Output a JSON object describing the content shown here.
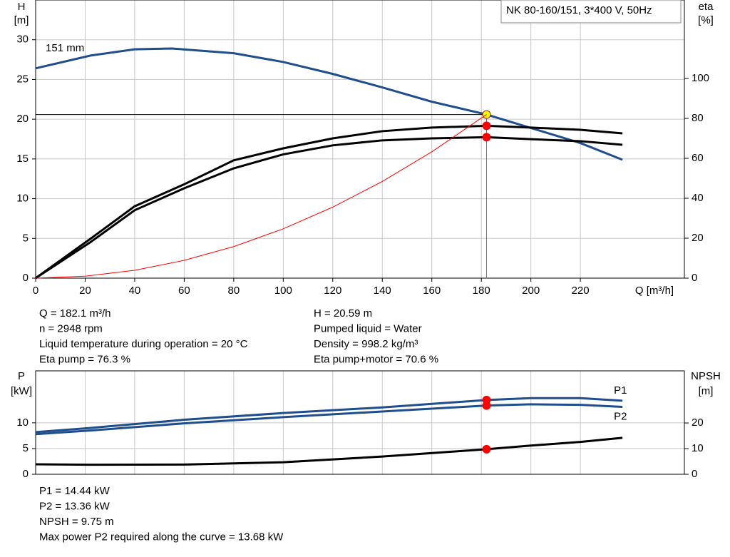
{
  "chart_data": [
    {
      "type": "line",
      "title": "NK 80-160/151, 3*400 V, 50Hz",
      "xlabel": "Q [m³/h]",
      "ylabel": "H",
      "yunit": "[m]",
      "y2label": "eta",
      "y2unit": "[%]",
      "xlim": [
        0,
        262
      ],
      "xticks": [
        0,
        20,
        40,
        60,
        80,
        100,
        120,
        140,
        160,
        180,
        200,
        220
      ],
      "ylim": [
        0,
        35
      ],
      "yticks": [
        0,
        5,
        10,
        15,
        20,
        25,
        30
      ],
      "y2lim": [
        0,
        139.3
      ],
      "y2ticks": [
        0,
        20,
        40,
        60,
        80,
        100
      ],
      "grid": true,
      "operating_q": 182.1,
      "drop_lines": true,
      "series": [
        {
          "name": "151 mm",
          "color": "#1f4e8c",
          "marker_color": "#ffff00",
          "x": [
            0,
            22,
            40,
            55,
            80,
            100,
            120,
            140,
            160,
            182.1,
            200,
            220,
            237
          ],
          "values": [
            26.4,
            28,
            28.8,
            28.9,
            28.3,
            27.2,
            25.7,
            24,
            22.2,
            20.59,
            18.9,
            17,
            14.9
          ]
        },
        {
          "color": "#000000",
          "marker_color": "#ff0000",
          "axis": "y2",
          "x": [
            0,
            22,
            40,
            60,
            80,
            100,
            120,
            140,
            160,
            182.1,
            200,
            220,
            237
          ],
          "values": [
            0,
            19.6,
            36,
            47,
            59,
            65,
            70,
            73.6,
            75.4,
            76.3,
            75.4,
            74.3,
            72.5
          ]
        },
        {
          "color": "#000000",
          "marker_color": "#ff0000",
          "axis": "y2",
          "x": [
            0,
            22,
            40,
            60,
            80,
            100,
            120,
            140,
            160,
            182.1,
            200,
            220,
            237
          ],
          "values": [
            0,
            17.9,
            34,
            45,
            55,
            62,
            66.5,
            69,
            70,
            70.6,
            69.6,
            68.6,
            66.8
          ]
        },
        {
          "color": "#ff0000",
          "x": [
            0,
            20,
            40,
            60,
            80,
            100,
            120,
            140,
            160,
            182.1
          ],
          "values": [
            0,
            0.25,
            0.99,
            2.24,
            3.97,
            6.21,
            8.94,
            12.17,
            15.9,
            20.59
          ]
        }
      ],
      "info": {
        "left": [
          "Q = 182.1 m³/h",
          "n = 2948 rpm",
          "Liquid temperature during operation = 20 °C",
          "Eta pump = 76.3 %"
        ],
        "right": [
          "H = 20.59 m",
          "Pumped liquid = Water",
          "Density = 998.2 kg/m³",
          "Eta pump+motor = 70.6 %"
        ]
      }
    },
    {
      "type": "line",
      "ylabel": "P",
      "yunit": "[kW]",
      "y2label": "NPSH",
      "y2unit": "[m]",
      "xlim": [
        0,
        262
      ],
      "xgrid": [
        0,
        20,
        40,
        60,
        80,
        100,
        120,
        140,
        160,
        180,
        200,
        220
      ],
      "ylim": [
        0,
        20.1
      ],
      "yticks": [
        0,
        5,
        10
      ],
      "y2lim": [
        0,
        40.3
      ],
      "y2ticks": [
        0,
        10,
        20
      ],
      "grid": true,
      "operating_q": 182.1,
      "series": [
        {
          "name": "P1",
          "color": "#1f4e8c",
          "marker_color": "#ff0000",
          "x": [
            0,
            22,
            60,
            100,
            140,
            182.1,
            200,
            220,
            237
          ],
          "values": [
            8.2,
            9,
            10.6,
            11.9,
            13,
            14.44,
            14.8,
            14.8,
            14.3
          ]
        },
        {
          "name": "P2",
          "color": "#1f4e8c",
          "marker_color": "#ff0000",
          "x": [
            0,
            22,
            60,
            100,
            140,
            182.1,
            200,
            220,
            237
          ],
          "values": [
            7.8,
            8.5,
            9.9,
            11.1,
            12.2,
            13.36,
            13.6,
            13.5,
            13.1
          ]
        },
        {
          "color": "#000000",
          "marker_color": "#ff0000",
          "axis": "y2",
          "x": [
            0,
            22,
            60,
            100,
            140,
            182.1,
            200,
            220,
            237
          ],
          "values": [
            3.9,
            3.7,
            3.8,
            4.7,
            6.9,
            9.75,
            11.2,
            12.6,
            14.2
          ]
        }
      ],
      "info": {
        "left": [
          "P1 = 14.44 kW",
          "P2 = 13.36 kW",
          "NPSH = 9.75 m",
          "Max power P2 required along the curve = 13.68 kW"
        ]
      }
    }
  ]
}
